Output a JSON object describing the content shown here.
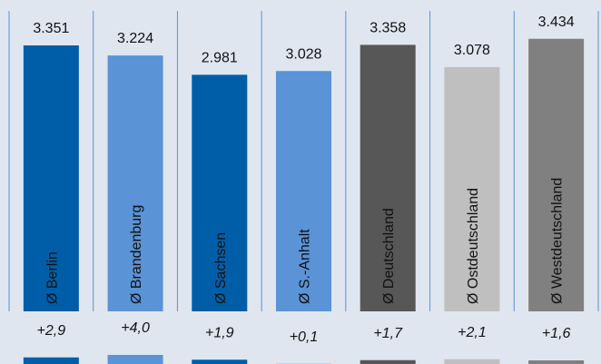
{
  "chart_data": [
    {
      "type": "bar",
      "categories": [
        "Ø Berlin",
        "Ø Brandenburg",
        "Ø Sachsen",
        "Ø S.-Anhalt",
        "Ø Deutschland",
        "Ø Ostdeutschland",
        "Ø Westdeutschland"
      ],
      "values": [
        3351,
        3224,
        2981,
        3028,
        3358,
        3078,
        3434
      ],
      "value_labels": [
        "3.351",
        "3.224",
        "2.981",
        "3.028",
        "3.358",
        "3.078",
        "3.434"
      ],
      "colors": [
        "#005ea8",
        "#5a93d6",
        "#005ea8",
        "#5a93d6",
        "#575757",
        "#bfbfbf",
        "#808080"
      ],
      "ylim": [
        0,
        3500
      ]
    },
    {
      "type": "bar",
      "values": [
        2.9,
        4.0,
        1.9,
        0.1,
        1.7,
        2.1,
        1.6
      ],
      "value_labels": [
        "+2,9",
        "+4,0",
        "+1,9",
        "+0,1",
        "+1,7",
        "+2,1",
        "+1,6"
      ],
      "colors": [
        "#005ea8",
        "#5a93d6",
        "#005ea8",
        "#5a93d6",
        "#575757",
        "#bfbfbf",
        "#808080"
      ],
      "ylim": [
        0,
        10
      ]
    }
  ]
}
